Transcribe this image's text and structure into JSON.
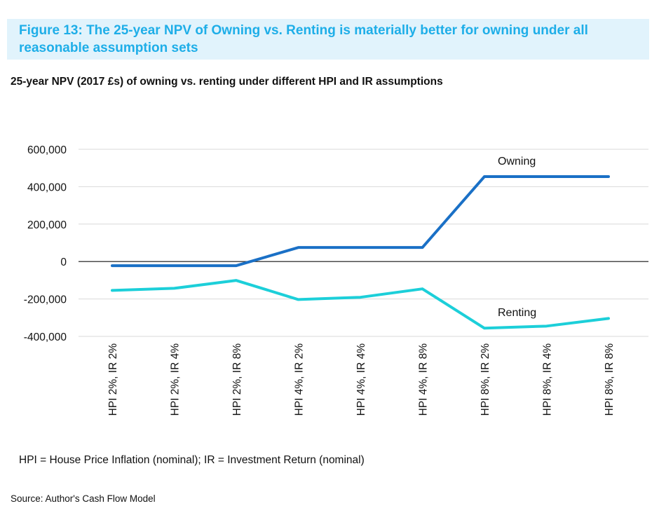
{
  "figure_title": "Figure 13: The 25-year NPV of Owning vs. Renting is materially better for owning under all reasonable assumption sets",
  "note": "HPI = House Price Inflation (nominal); IR = Investment Return (nominal)",
  "source": "Source: Author's Cash Flow Model",
  "chart_data": {
    "type": "line",
    "title": "25-year NPV (2017 £s) of owning vs. renting under different HPI and IR assumptions",
    "categories": [
      "HPI 2%, IR 2%",
      "HPI 2%, IR 4%",
      "HPI 2%, IR 8%",
      "HPI 4%, IR 2%",
      "HPI 4%, IR 4%",
      "HPI 4%, IR 8%",
      "HPI 8%, IR 2%",
      "HPI 8%, IR 4%",
      "HPI 8%, IR 8%"
    ],
    "yticks": [
      600000,
      400000,
      200000,
      0,
      -200000,
      -400000
    ],
    "ytick_labels": [
      "600,000",
      "400,000",
      "200,000",
      "0",
      "-200,000",
      "-400,000"
    ],
    "ylim": [
      -400000,
      600000
    ],
    "grid": true,
    "series": [
      {
        "name": "Owning",
        "color": "#1a70c6",
        "values": [
          -22000,
          -22000,
          -22000,
          75000,
          75000,
          75000,
          454000,
          454000,
          454000
        ]
      },
      {
        "name": "Renting",
        "color": "#1ccfd9",
        "values": [
          -154000,
          -143000,
          -101000,
          -203000,
          -191000,
          -146000,
          -356000,
          -345000,
          -304000
        ]
      }
    ]
  }
}
